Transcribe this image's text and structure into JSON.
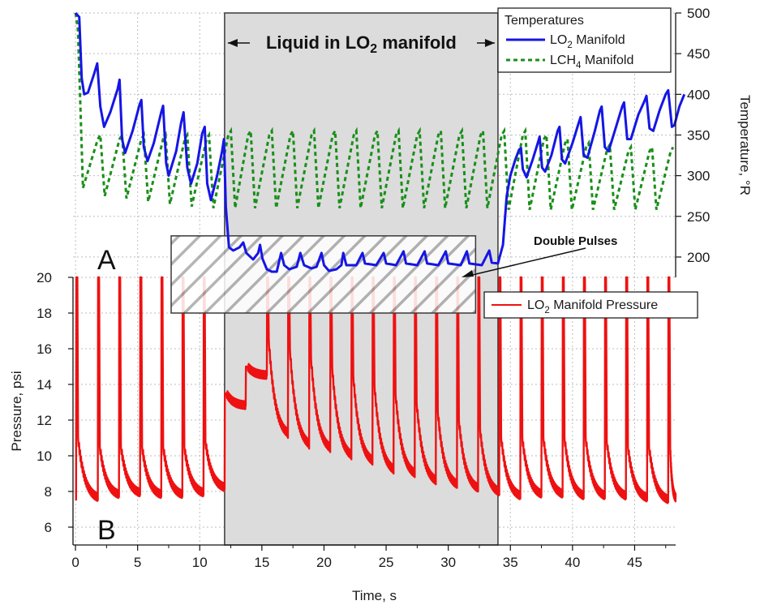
{
  "chart_data": [
    {
      "type": "line",
      "panel": "A",
      "panel_label": "A",
      "y_axis_position": "right",
      "ylabel": "Temperature, °R",
      "ylim": [
        175,
        500
      ],
      "yticks": [
        200,
        250,
        300,
        350,
        400,
        450,
        500
      ],
      "x_shared_with_panel": "B",
      "grid": true,
      "legend_title": "Temperatures",
      "legend_position": "top-right",
      "series": [
        {
          "name": "LO2 Manifold",
          "name_main": "LO",
          "name_sub": "2",
          "name_rest": " Manifold",
          "color": "#1515e6",
          "style": "solid",
          "points": [
            [
              0,
              500
            ],
            [
              0.3,
              495
            ],
            [
              0.5,
              420
            ],
            [
              0.7,
              400
            ],
            [
              1.0,
              402
            ],
            [
              1.5,
              425
            ],
            [
              1.75,
              438
            ],
            [
              2.0,
              385
            ],
            [
              2.3,
              360
            ],
            [
              2.8,
              378
            ],
            [
              3.4,
              407
            ],
            [
              3.55,
              418
            ],
            [
              3.75,
              345
            ],
            [
              4.0,
              328
            ],
            [
              4.6,
              355
            ],
            [
              5.15,
              387
            ],
            [
              5.3,
              393
            ],
            [
              5.5,
              335
            ],
            [
              5.8,
              318
            ],
            [
              6.3,
              340
            ],
            [
              6.9,
              378
            ],
            [
              7.05,
              386
            ],
            [
              7.3,
              315
            ],
            [
              7.5,
              300
            ],
            [
              8.1,
              330
            ],
            [
              8.5,
              365
            ],
            [
              8.7,
              378
            ],
            [
              9.0,
              310
            ],
            [
              9.3,
              290
            ],
            [
              9.8,
              315
            ],
            [
              10.2,
              352
            ],
            [
              10.4,
              360
            ],
            [
              10.6,
              290
            ],
            [
              10.9,
              270
            ],
            [
              11.4,
              300
            ],
            [
              11.8,
              330
            ],
            [
              11.95,
              345
            ],
            [
              12.1,
              262
            ],
            [
              12.35,
              212
            ],
            [
              12.7,
              208
            ],
            [
              13.2,
              212
            ],
            [
              13.5,
              218
            ],
            [
              13.75,
              205
            ],
            [
              14.3,
              197
            ],
            [
              14.7,
              205
            ],
            [
              14.85,
              215
            ],
            [
              15.05,
              198
            ],
            [
              15.4,
              185
            ],
            [
              15.8,
              182
            ],
            [
              16.2,
              182
            ],
            [
              16.55,
              205
            ],
            [
              16.8,
              190
            ],
            [
              17.2,
              185
            ],
            [
              17.8,
              188
            ],
            [
              18.1,
              205
            ],
            [
              18.4,
              190
            ],
            [
              19.0,
              186
            ],
            [
              19.4,
              188
            ],
            [
              19.8,
              205
            ],
            [
              20.0,
              190
            ],
            [
              20.4,
              183
            ],
            [
              21.0,
              185
            ],
            [
              21.4,
              190
            ],
            [
              21.55,
              205
            ],
            [
              21.8,
              190
            ],
            [
              22.6,
              190
            ],
            [
              23.1,
              205
            ],
            [
              23.3,
              192
            ],
            [
              24.2,
              190
            ],
            [
              24.8,
              205
            ],
            [
              25.0,
              192
            ],
            [
              25.8,
              190
            ],
            [
              26.4,
              207
            ],
            [
              26.6,
              192
            ],
            [
              27.5,
              190
            ],
            [
              28.1,
              207
            ],
            [
              28.3,
              192
            ],
            [
              29.2,
              190
            ],
            [
              29.8,
              207
            ],
            [
              30.0,
              192
            ],
            [
              31.0,
              190
            ],
            [
              31.5,
              207
            ],
            [
              31.7,
              192
            ],
            [
              32.7,
              190
            ],
            [
              33.3,
              208
            ],
            [
              33.5,
              193
            ],
            [
              34.0,
              192
            ],
            [
              34.4,
              215
            ],
            [
              34.7,
              275
            ],
            [
              35.0,
              300
            ],
            [
              35.4,
              320
            ],
            [
              35.7,
              332
            ],
            [
              35.85,
              334
            ],
            [
              36.0,
              308
            ],
            [
              36.3,
              298
            ],
            [
              36.8,
              320
            ],
            [
              37.2,
              340
            ],
            [
              37.35,
              348
            ],
            [
              37.55,
              310
            ],
            [
              37.8,
              305
            ],
            [
              38.3,
              325
            ],
            [
              38.8,
              355
            ],
            [
              38.95,
              360
            ],
            [
              39.15,
              320
            ],
            [
              39.4,
              315
            ],
            [
              40.0,
              340
            ],
            [
              40.5,
              365
            ],
            [
              40.65,
              372
            ],
            [
              40.9,
              325
            ],
            [
              41.2,
              322
            ],
            [
              41.8,
              355
            ],
            [
              42.2,
              380
            ],
            [
              42.35,
              385
            ],
            [
              42.6,
              335
            ],
            [
              42.9,
              330
            ],
            [
              43.5,
              360
            ],
            [
              44.0,
              385
            ],
            [
              44.15,
              390
            ],
            [
              44.4,
              345
            ],
            [
              44.7,
              345
            ],
            [
              45.3,
              375
            ],
            [
              45.8,
              392
            ],
            [
              45.95,
              398
            ],
            [
              46.2,
              358
            ],
            [
              46.5,
              355
            ],
            [
              47.0,
              380
            ],
            [
              47.5,
              400
            ],
            [
              47.7,
              405
            ],
            [
              48.0,
              360
            ],
            [
              48.2,
              362
            ],
            [
              48.6,
              385
            ],
            [
              49.0,
              400
            ]
          ]
        },
        {
          "name": "LCH4 Manifold",
          "name_main": "LCH",
          "name_sub": "4",
          "name_rest": " Manifold",
          "color": "#1a8f1a",
          "style": "dashed",
          "pulse_times_s": [
            0.25,
            2.0,
            3.75,
            5.5,
            7.25,
            9.0,
            10.75,
            12.5,
            14.1,
            15.8,
            17.5,
            19.2,
            20.9,
            22.6,
            24.3,
            26.0,
            27.7,
            29.4,
            31.1,
            32.8,
            34.5,
            36.2,
            37.9,
            39.6,
            41.3,
            43.0,
            44.7,
            46.4,
            48.1
          ],
          "valley_values": [
            500,
            285,
            275,
            272,
            268,
            265,
            262,
            260,
            260,
            260,
            260,
            260,
            260,
            260,
            260,
            260,
            260,
            260,
            260,
            260,
            260,
            258,
            258,
            258,
            258,
            258,
            258,
            258,
            258
          ],
          "peak_values": [
            470,
            350,
            350,
            350,
            350,
            350,
            350,
            355,
            355,
            355,
            355,
            355,
            355,
            355,
            355,
            355,
            355,
            355,
            355,
            355,
            355,
            355,
            350,
            345,
            340,
            338,
            335,
            335,
            335
          ]
        }
      ],
      "annotations": [
        {
          "id": "liquid-region",
          "text_pre": "Liquid in LO",
          "text_sub": "2",
          "text_post": " manifold",
          "x_range": [
            12,
            34
          ]
        },
        {
          "id": "double-pulses",
          "text": "Double Pulses",
          "hatched_x_range": [
            7.7,
            32.2
          ]
        }
      ]
    },
    {
      "type": "line",
      "panel": "B",
      "panel_label": "B",
      "y_axis_position": "left",
      "xlabel": "Time, s",
      "ylabel": "Pressure, psi",
      "xlim": [
        -0.2,
        48.3
      ],
      "ylim": [
        5,
        20
      ],
      "xticks": [
        0,
        5,
        10,
        15,
        20,
        25,
        30,
        35,
        40,
        45
      ],
      "yticks": [
        6,
        8,
        10,
        12,
        14,
        16,
        18,
        20
      ],
      "grid": true,
      "legend_position": "right",
      "series": [
        {
          "name": "LO2 Manifold Pressure",
          "name_main": "LO",
          "name_sub": "2",
          "name_rest": " Manifold Pressure",
          "color": "#ee1111",
          "pulse_times_s": [
            0.05,
            1.8,
            3.5,
            5.2,
            6.9,
            8.6,
            10.3,
            12.0,
            13.7,
            15.4,
            17.1,
            18.8,
            20.5,
            22.2,
            23.9,
            25.6,
            27.3,
            29.0,
            30.7,
            32.4,
            34.1,
            35.8,
            37.5,
            39.2,
            40.9,
            42.6,
            44.3,
            46.0,
            47.7
          ],
          "peak_values": [
            20,
            20,
            20,
            20,
            20,
            20,
            20,
            13.5,
            15.0,
            20,
            20,
            20,
            20,
            20,
            20,
            20,
            20,
            20,
            20,
            20,
            20,
            20,
            20,
            20,
            20,
            20,
            20,
            20,
            20
          ],
          "valley_values": [
            7.5,
            7.7,
            7.8,
            7.7,
            7.7,
            7.8,
            8.1,
            12.8,
            14.5,
            11.0,
            10.4,
            10.2,
            9.8,
            9.5,
            9.0,
            8.8,
            8.4,
            8.2,
            8.0,
            7.8,
            7.6,
            7.7,
            7.7,
            7.6,
            7.6,
            7.6,
            7.5,
            7.4,
            7.5
          ],
          "post_peak_values": [
            11,
            10.5,
            10.5,
            10.5,
            10.5,
            10.5,
            10.8,
            13.5,
            15.0,
            16.5,
            16.0,
            15.5,
            15.0,
            14.5,
            14.0,
            13.5,
            13.0,
            12.5,
            12.0,
            11.5,
            11.0,
            11.0,
            11.0,
            11.0,
            11.0,
            10.8,
            10.5,
            10.5,
            10.5
          ]
        }
      ]
    }
  ]
}
